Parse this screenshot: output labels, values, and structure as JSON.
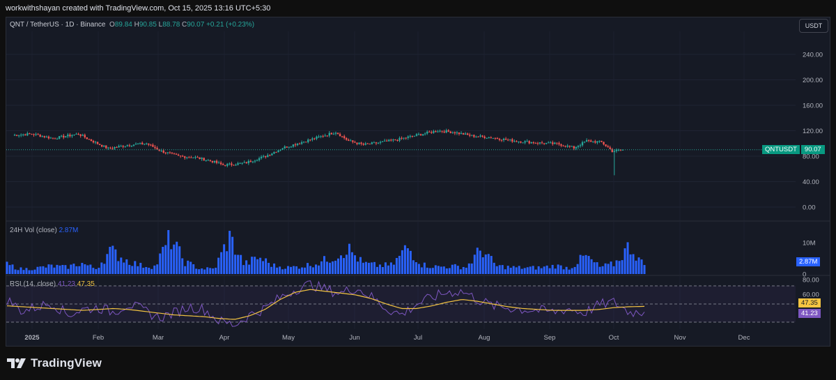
{
  "header": {
    "attribution": "workwithshayan created with TradingView.com, Oct 15, 2025 13:16 UTC+5:30"
  },
  "symbol": {
    "title": "QNT / TetherUS · 1D · Binance",
    "o_label": "O",
    "o": "89.84",
    "h_label": "H",
    "h": "90.85",
    "l_label": "L",
    "l": "88.78",
    "c_label": "C",
    "c": "90.07",
    "change": "+0.21 (+0.23%)"
  },
  "currency_button": "USDT",
  "price_axis": {
    "ticks": [
      "240.00",
      "200.00",
      "160.00",
      "120.00",
      "80.00",
      "40.00",
      "0.00"
    ]
  },
  "price_tag": {
    "name": "QNTUSDT",
    "value": "90.07"
  },
  "volume": {
    "label": "24H Vol (close)",
    "value": "2.87M",
    "axis_ticks": [
      "10M",
      "0"
    ],
    "tag": "2.87M"
  },
  "rsi": {
    "label": "RSI (14, close)",
    "rsi_value": "41.23",
    "ma_value": "47.35",
    "axis_ticks": [
      "80.00",
      "60.00"
    ],
    "tag_ma": "47.35",
    "tag_rsi": "41.23"
  },
  "time_axis": {
    "labels": [
      "2025",
      "Feb",
      "Mar",
      "Apr",
      "May",
      "Jun",
      "Jul",
      "Aug",
      "Sep",
      "Oct",
      "Nov",
      "Dec"
    ]
  },
  "brand": {
    "name": "TradingView"
  },
  "colors": {
    "up": "#26a69a",
    "down": "#ef5350",
    "volume": "#2962ff",
    "rsi": "#7e57c2",
    "rsi_ma": "#f5c542",
    "background": "#161a25"
  },
  "chart_data": [
    {
      "type": "candlestick",
      "title": "QNT / TetherUS · 1D · Binance",
      "x_range": [
        "2025-01-01",
        "2025-10-15"
      ],
      "ylim": [
        0,
        260
      ],
      "points": [
        {
          "x": "2025-01-01",
          "close": 113
        },
        {
          "x": "2025-01-10",
          "close": 115
        },
        {
          "x": "2025-01-20",
          "close": 108
        },
        {
          "x": "2025-02-01",
          "close": 115
        },
        {
          "x": "2025-02-08",
          "close": 103
        },
        {
          "x": "2025-02-15",
          "close": 92
        },
        {
          "x": "2025-02-25",
          "close": 98
        },
        {
          "x": "2025-03-05",
          "close": 100
        },
        {
          "x": "2025-03-12",
          "close": 88
        },
        {
          "x": "2025-03-20",
          "close": 80
        },
        {
          "x": "2025-03-28",
          "close": 78
        },
        {
          "x": "2025-04-05",
          "close": 72
        },
        {
          "x": "2025-04-10",
          "close": 66
        },
        {
          "x": "2025-04-20",
          "close": 69
        },
        {
          "x": "2025-04-30",
          "close": 80
        },
        {
          "x": "2025-05-08",
          "close": 93
        },
        {
          "x": "2025-05-15",
          "close": 100
        },
        {
          "x": "2025-05-25",
          "close": 110
        },
        {
          "x": "2025-06-02",
          "close": 118
        },
        {
          "x": "2025-06-08",
          "close": 104
        },
        {
          "x": "2025-06-15",
          "close": 98
        },
        {
          "x": "2025-06-22",
          "close": 101
        },
        {
          "x": "2025-07-01",
          "close": 106
        },
        {
          "x": "2025-07-10",
          "close": 113
        },
        {
          "x": "2025-07-20",
          "close": 120
        },
        {
          "x": "2025-07-27",
          "close": 118
        },
        {
          "x": "2025-08-05",
          "close": 112
        },
        {
          "x": "2025-08-15",
          "close": 109
        },
        {
          "x": "2025-08-25",
          "close": 104
        },
        {
          "x": "2025-09-05",
          "close": 101
        },
        {
          "x": "2025-09-15",
          "close": 99
        },
        {
          "x": "2025-09-22",
          "close": 93
        },
        {
          "x": "2025-09-28",
          "close": 104
        },
        {
          "x": "2025-10-05",
          "close": 102
        },
        {
          "x": "2025-10-10",
          "close": 88
        },
        {
          "x": "2025-10-15",
          "close": 90.07
        }
      ],
      "last": {
        "open": 89.84,
        "high": 90.85,
        "low": 88.78,
        "close": 90.07
      }
    },
    {
      "type": "bar",
      "title": "24H Vol (close)",
      "unit": "M",
      "ylim": [
        0,
        14
      ],
      "series": [
        {
          "values": [
            3.5,
            1.8,
            2.2,
            3.0,
            2.5,
            4.1,
            2.0,
            8.7,
            5.3,
            3.2,
            2.8,
            13.6,
            4.5,
            2.1,
            1.9,
            13.8,
            3.6,
            6.2,
            3.1,
            2.4,
            3.0,
            4.2,
            6.3,
            9.6,
            4.0,
            3.2,
            3.3,
            10.1,
            3.5,
            2.7,
            2.9,
            2.6,
            9.4,
            3.0,
            2.5,
            2.3,
            2.4,
            3.1,
            2.2,
            6.8,
            2.6,
            3.8,
            10.6,
            2.87
          ]
        }
      ]
    },
    {
      "type": "line",
      "title": "RSI (14, close)",
      "ylim": [
        20,
        80
      ],
      "reference_lines": [
        30,
        50,
        70
      ],
      "series": [
        {
          "values": [
            55,
            42,
            47,
            51,
            38,
            44,
            46,
            41,
            50,
            43,
            35,
            40,
            47,
            44,
            31,
            27,
            38,
            45,
            57,
            66,
            72,
            66,
            62,
            68,
            58,
            45,
            38,
            50,
            57,
            63,
            64,
            55,
            48,
            46,
            44,
            43,
            41,
            45,
            40,
            49,
            52,
            41,
            41.23
          ]
        },
        {
          "values": [
            48,
            47,
            46,
            45,
            44,
            43,
            44,
            45,
            44,
            42,
            40,
            38,
            37,
            36,
            34,
            33,
            37,
            44,
            55,
            63,
            66,
            64,
            62,
            60,
            56,
            50,
            45,
            45,
            48,
            52,
            55,
            53,
            50,
            47,
            45,
            44,
            43,
            43,
            43,
            44,
            46,
            47,
            47.35
          ]
        }
      ]
    }
  ]
}
